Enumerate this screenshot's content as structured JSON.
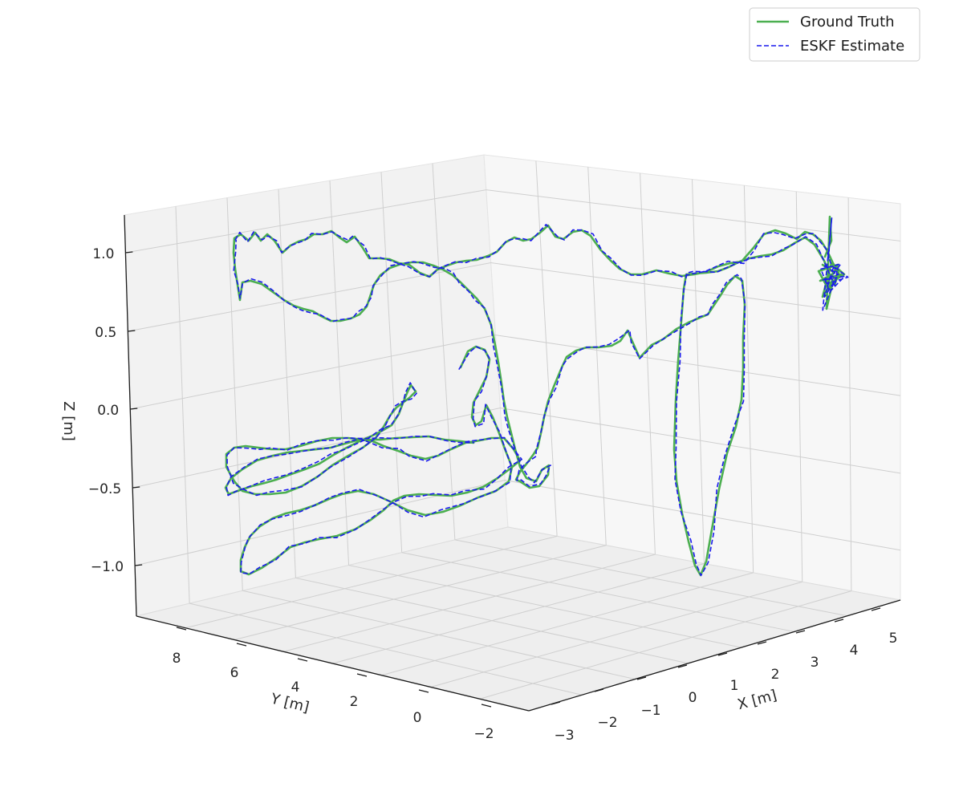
{
  "chart_data": {
    "type": "line",
    "projection": "3d",
    "xlabel": "X [m]",
    "ylabel": "Y [m]",
    "zlabel": "Z [m]",
    "xlim": [
      -3.2,
      5.3
    ],
    "ylim": [
      -2.6,
      9.4
    ],
    "zlim": [
      -1.3,
      1.3
    ],
    "x_ticks": [
      "−3",
      "−2",
      "−1",
      "0",
      "1",
      "2",
      "3",
      "4",
      "5"
    ],
    "y_ticks": [
      "8",
      "6",
      "4",
      "2",
      "0",
      "−2"
    ],
    "z_ticks": [
      "1.0",
      "0.5",
      "0.0",
      "−0.5",
      "−1.0"
    ],
    "grid": true,
    "legend_position": "top-right",
    "series": [
      {
        "name": "Ground Truth",
        "color": "#4caf50",
        "style": "solid"
      },
      {
        "name": "ESKF Estimate",
        "color": "#1a1aee",
        "style": "dashed"
      }
    ]
  }
}
